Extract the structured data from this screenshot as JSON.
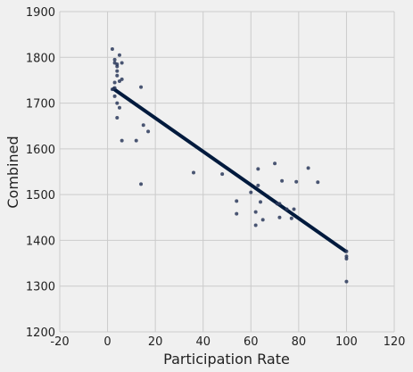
{
  "chart_data": {
    "type": "scatter",
    "xlabel": "Participation Rate",
    "ylabel": "Combined",
    "xlim": [
      -20,
      120
    ],
    "ylim": [
      1200,
      1900
    ],
    "xticks": [
      "-20",
      "0",
      "20",
      "40",
      "60",
      "80",
      "100",
      "120"
    ],
    "yticks": [
      "1200",
      "1300",
      "1400",
      "1500",
      "1600",
      "1700",
      "1800",
      "1900"
    ],
    "grid": true,
    "colors": {
      "background": "#f0f0f0",
      "grid": "#cbcbcb",
      "point": "#2b3a5c",
      "fit_line": "#001a3d"
    },
    "points": [
      [
        2,
        1818
      ],
      [
        3,
        1795
      ],
      [
        3,
        1788
      ],
      [
        4,
        1785
      ],
      [
        4,
        1780
      ],
      [
        5,
        1805
      ],
      [
        6,
        1788
      ],
      [
        4,
        1770
      ],
      [
        4,
        1760
      ],
      [
        3,
        1745
      ],
      [
        5,
        1748
      ],
      [
        6,
        1752
      ],
      [
        3,
        1733
      ],
      [
        2,
        1730
      ],
      [
        3,
        1715
      ],
      [
        4,
        1700
      ],
      [
        5,
        1690
      ],
      [
        4,
        1668
      ],
      [
        6,
        1618
      ],
      [
        12,
        1618
      ],
      [
        14,
        1735
      ],
      [
        15,
        1652
      ],
      [
        17,
        1638
      ],
      [
        14,
        1523
      ],
      [
        36,
        1548
      ],
      [
        48,
        1545
      ],
      [
        54,
        1486
      ],
      [
        54,
        1458
      ],
      [
        60,
        1505
      ],
      [
        62,
        1433
      ],
      [
        62,
        1462
      ],
      [
        63,
        1520
      ],
      [
        63,
        1556
      ],
      [
        64,
        1484
      ],
      [
        65,
        1445
      ],
      [
        70,
        1568
      ],
      [
        71,
        1480
      ],
      [
        72,
        1450
      ],
      [
        72,
        1480
      ],
      [
        73,
        1530
      ],
      [
        75,
        1468
      ],
      [
        77,
        1448
      ],
      [
        78,
        1468
      ],
      [
        79,
        1528
      ],
      [
        84,
        1558
      ],
      [
        88,
        1527
      ],
      [
        100,
        1376
      ],
      [
        100,
        1365
      ],
      [
        100,
        1360
      ],
      [
        100,
        1310
      ]
    ],
    "fit_line": {
      "x": [
        2,
        100
      ],
      "y": [
        1733,
        1375
      ]
    }
  }
}
